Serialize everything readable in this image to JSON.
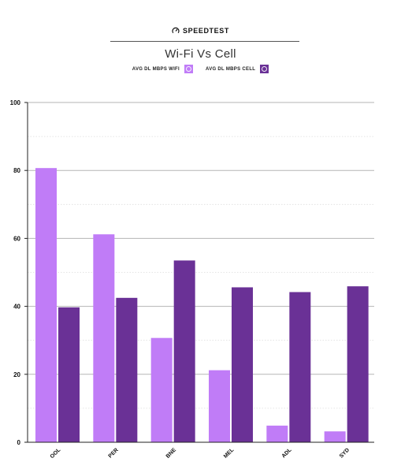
{
  "header": {
    "brand": "SPEEDTEST",
    "title": "Wi-Fi Vs Cell"
  },
  "colors": {
    "wifi": "#c07cf7",
    "cell": "#6a3196",
    "axis": "#222222",
    "grid_major": "#b5b5b5",
    "grid_minor": "#dddddd"
  },
  "chart_data": {
    "type": "bar",
    "title": "Wi-Fi Vs Cell",
    "categories": [
      "OOL",
      "PER",
      "BNE",
      "MEL",
      "ADL",
      "SYD"
    ],
    "series": [
      {
        "name": "AVG DL MBPS WIFI",
        "values": [
          80.7,
          61.2,
          30.7,
          21.2,
          4.9,
          3.2
        ]
      },
      {
        "name": "AVG DL MBPS CELL",
        "values": [
          39.7,
          42.5,
          53.5,
          45.6,
          44.2,
          45.9
        ]
      }
    ],
    "ylim": [
      0,
      100
    ],
    "yticks": [
      0,
      20,
      40,
      60,
      80,
      100
    ],
    "minor_grid": [
      10,
      30,
      50,
      70,
      90
    ],
    "grid": true,
    "legend": "top-center",
    "xlabel": "",
    "ylabel": ""
  }
}
